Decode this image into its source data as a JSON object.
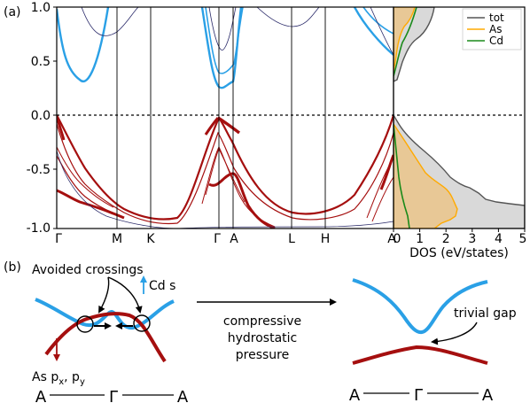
{
  "panel_a": {
    "label": "(a)",
    "band_axis": {
      "yticks": [
        "1.0",
        "0.5",
        "0.0",
        "-0.5",
        "-1.0"
      ],
      "kpoints": [
        "Γ",
        "M",
        "K",
        "Γ",
        "A",
        "L",
        "H",
        "A"
      ]
    },
    "dos_axis": {
      "xlabel": "DOS (eV/states)",
      "xticks": [
        "0",
        "1",
        "2",
        "3",
        "4",
        "5"
      ]
    },
    "legend": [
      {
        "label": "tot",
        "color": "#555555"
      },
      {
        "label": "As",
        "color": "#ffaa00"
      },
      {
        "label": "Cd",
        "color": "#1a8a1a"
      }
    ]
  },
  "panel_b": {
    "label": "(b)",
    "avoided_label": "Avoided crossings",
    "cd_label": "Cd s",
    "as_label": "As p",
    "as_sub_x": "x",
    "as_sep": ", p",
    "as_sub_y": "y",
    "arrow_text": [
      "compressive",
      "hydrostatic",
      "pressure"
    ],
    "gap_label": "trivial gap",
    "left_kpath": [
      "A",
      "Γ",
      "A"
    ],
    "right_kpath": [
      "A",
      "Γ",
      "A"
    ]
  },
  "colors": {
    "cd_band": "#2aa0e6",
    "as_band": "#a50f0f",
    "thin_band": "#2b2b6a",
    "tot_fill": "#d9d9d9",
    "as_fill": "#e8c896"
  },
  "chart_data": [
    {
      "type": "line",
      "ylim": [
        -1.0,
        1.0
      ],
      "x": [
        "Γ",
        "M",
        "K",
        "Γ",
        "A",
        "L",
        "H",
        "A"
      ],
      "fermi_level": 0.0,
      "series": [
        {
          "values": [
            -0.32,
            -0.78,
            -0.99,
            -0.32,
            -0.82,
            -0.95,
            -0.95,
            -0.82
          ]
        },
        {
          "values": [
            -0.72,
            -0.95,
            -1.0,
            -0.72,
            -0.98,
            -1.0,
            -1.0,
            -0.98
          ]
        },
        {
          "values": [
            0.0,
            -0.55,
            -0.98,
            0.0,
            -0.12,
            -0.9,
            -0.9,
            0.0
          ]
        },
        {
          "values": [
            0.28,
            1.0,
            1.0,
            0.25,
            0.32,
            1.0,
            1.0,
            0.55
          ]
        }
      ]
    },
    {
      "type": "area",
      "xlim": [
        0,
        5
      ],
      "ylim": [
        -1.0,
        1.0
      ],
      "series": [
        {
          "name": "tot",
          "x": [
            0.0,
            0.5,
            1.0,
            1.5,
            2.0,
            3.0,
            4.0,
            5.0
          ],
          "y": [
            -0.0,
            -0.08,
            -0.28,
            -0.48,
            -0.58,
            -0.74,
            -0.84,
            -0.88
          ]
        },
        {
          "name": "As",
          "x": [
            0.0,
            0.5,
            1.0,
            1.5,
            2.0,
            2.5
          ],
          "y": [
            -0.0,
            -0.2,
            -0.5,
            -0.72,
            -0.86,
            -0.94
          ]
        },
        {
          "name": "Cd",
          "x": [
            0.0,
            0.5,
            0.8
          ],
          "y": [
            -0.1,
            -0.6,
            -0.98
          ]
        }
      ]
    }
  ]
}
